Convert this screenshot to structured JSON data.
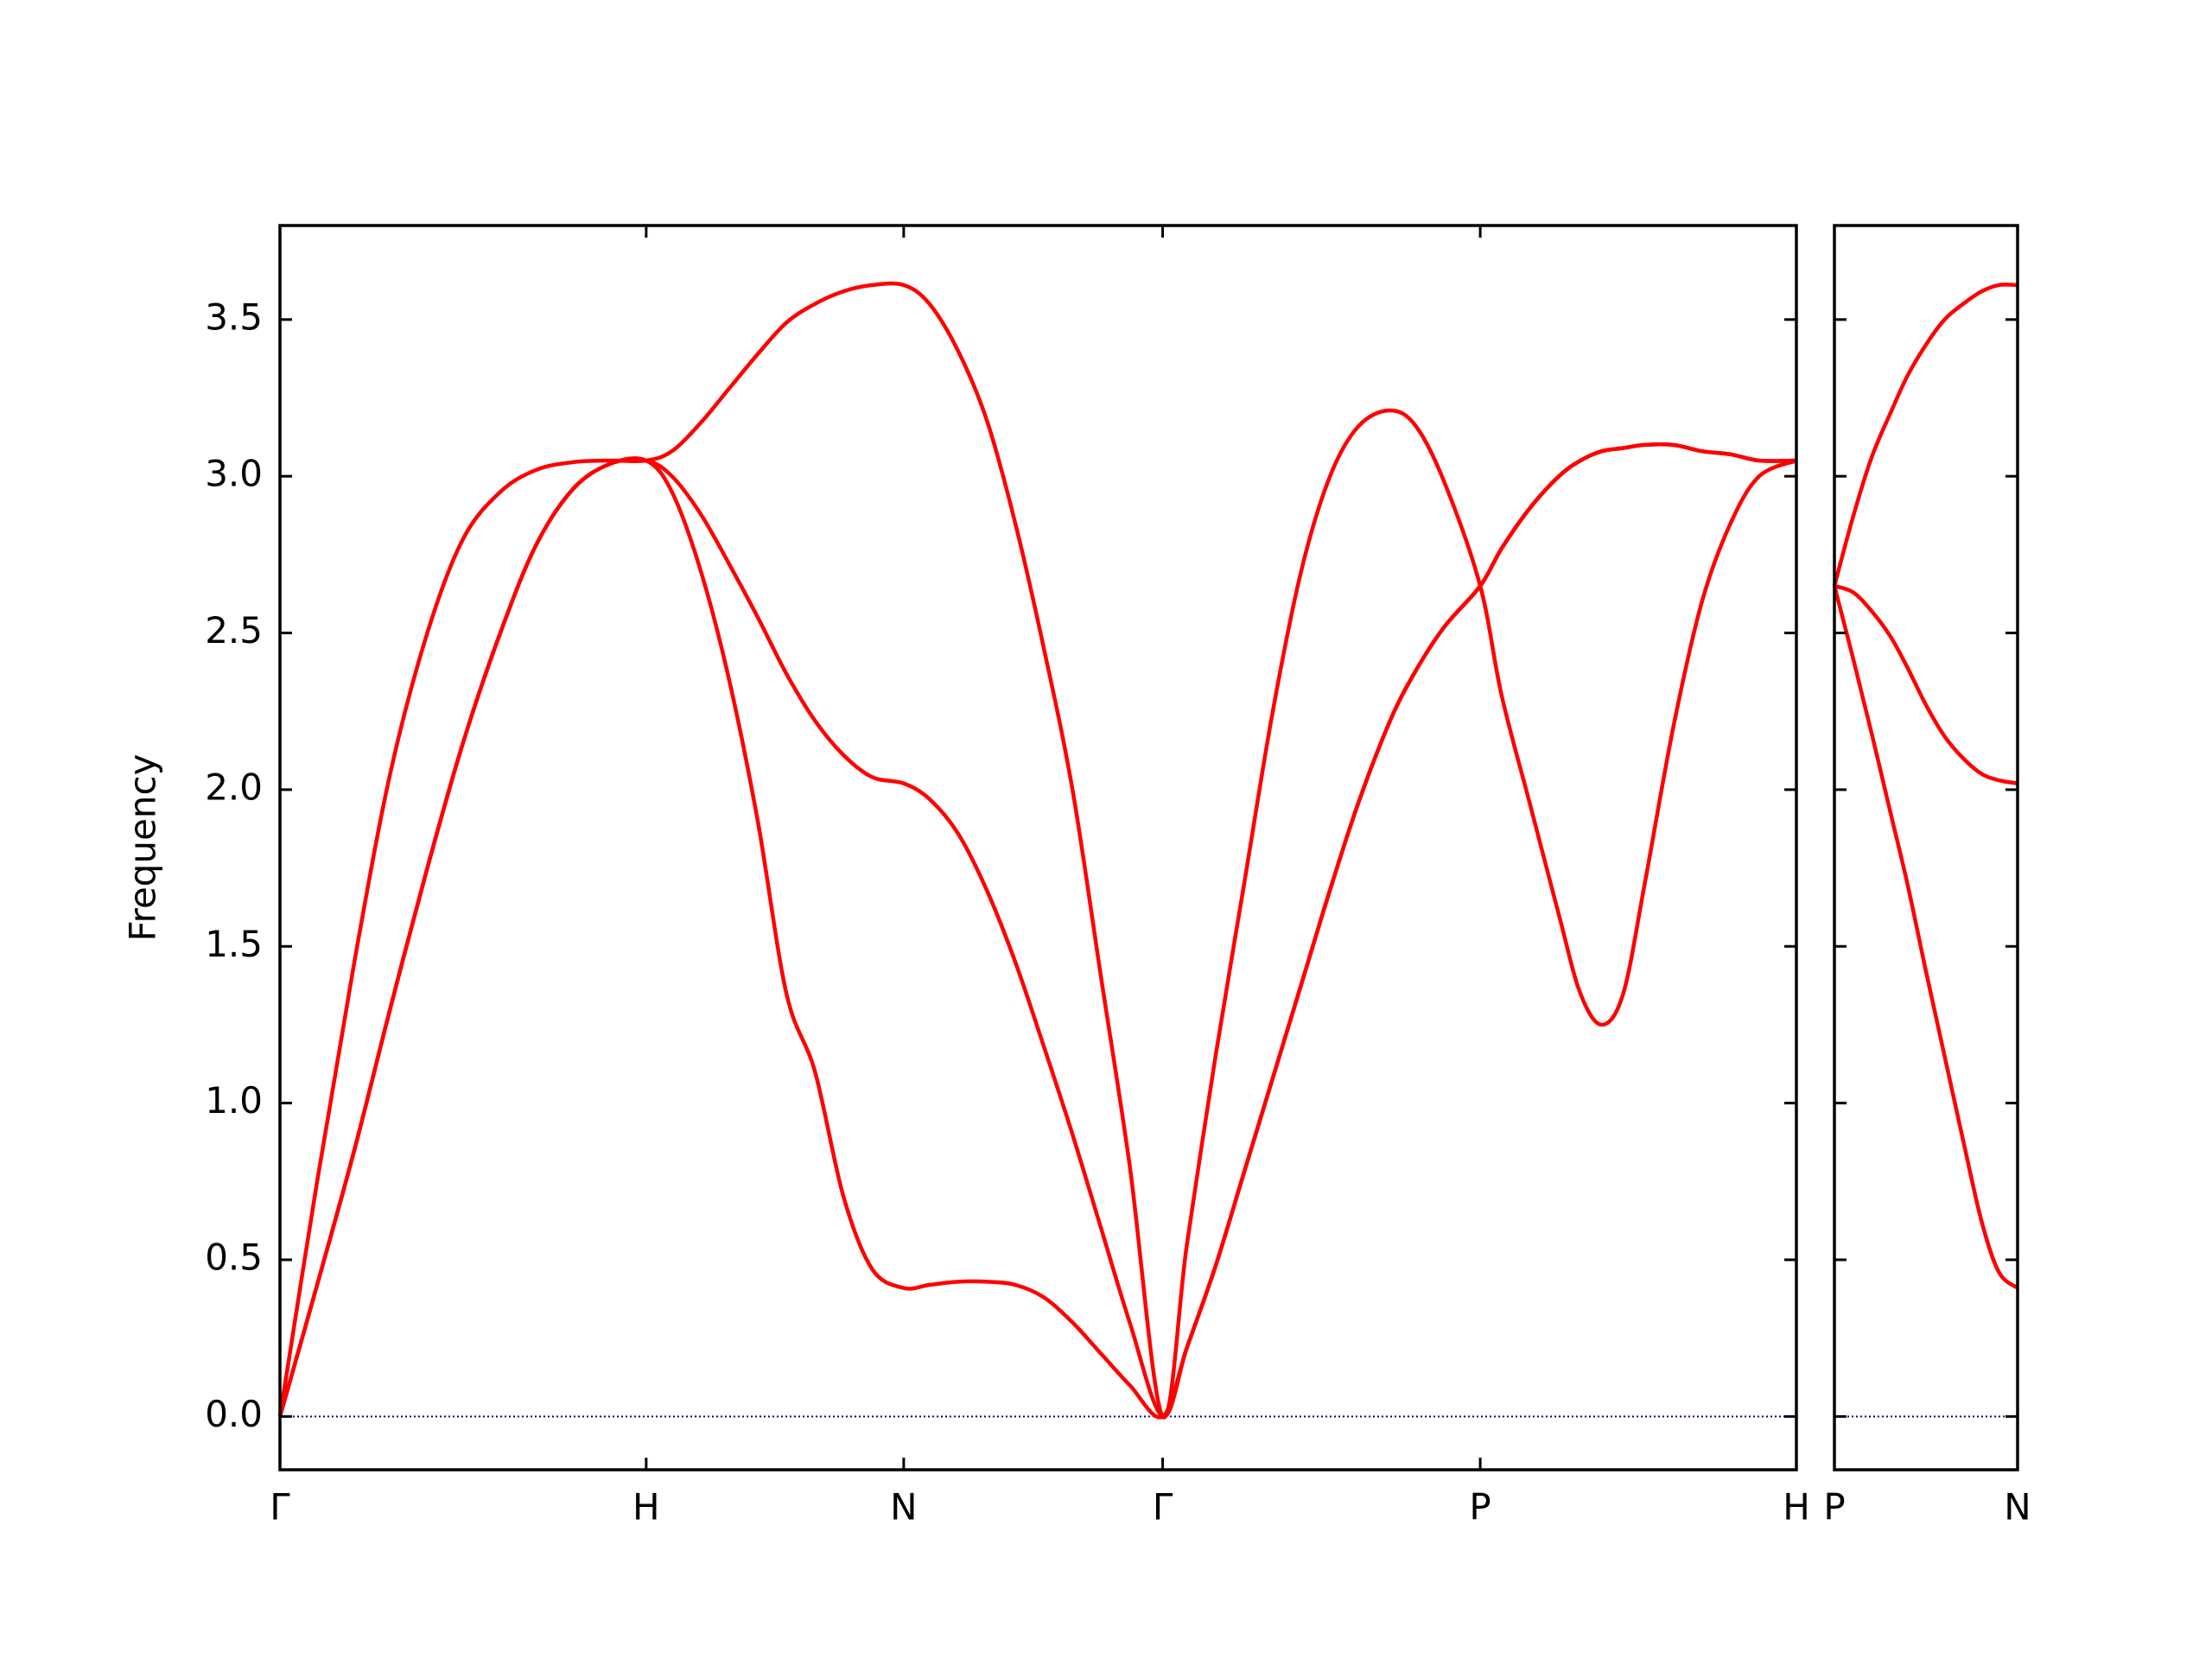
{
  "chart_data": [
    {
      "type": "line",
      "ylabel": "Frequency",
      "x": [
        0,
        0.026,
        0.052,
        0.077,
        0.103,
        0.128,
        0.154,
        0.179,
        0.205,
        0.231,
        0.256,
        0.274,
        0.294,
        0.314,
        0.334,
        0.354,
        0.374,
        0.394,
        0.414,
        0.436,
        0.454,
        0.474,
        0.494,
        0.514,
        0.534,
        0.554,
        0.574,
        0.594,
        0.617,
        0.634,
        0.654,
        0.674,
        0.694,
        0.714,
        0.734,
        0.754,
        0.776,
        0.794,
        0.814,
        0.839,
        0.854,
        0.874,
        0.894,
        0.909,
        0.924,
        0.939,
        0.954,
        0.974,
        0.994,
        1.014,
        1.034,
        1.06
      ],
      "series": [
        {
          "color": "#ff0000",
          "values": [
            0,
            0.75,
            1.45,
            2.05,
            2.5,
            2.8,
            2.95,
            3.02,
            3.045,
            3.05,
            3.05,
            3.08,
            3.17,
            3.28,
            3.39,
            3.49,
            3.55,
            3.59,
            3.61,
            3.61,
            3.55,
            3.4,
            3.18,
            2.85,
            2.45,
            2.0,
            1.4,
            0.8,
            0,
            0.55,
            1.15,
            1.7,
            2.25,
            2.7,
            3.0,
            3.16,
            3.21,
            3.16,
            2.98,
            2.65,
            2.3,
            1.95,
            1.6,
            1.35,
            1.25,
            1.35,
            1.7,
            2.2,
            2.6,
            2.85,
            3.0,
            3.05
          ]
        },
        {
          "color": "#ff0000",
          "values": [
            0,
            0.42,
            0.85,
            1.3,
            1.75,
            2.15,
            2.5,
            2.78,
            2.96,
            3.04,
            3.05,
            3.0,
            2.88,
            2.72,
            2.55,
            2.37,
            2.22,
            2.11,
            2.04,
            2.02,
            1.97,
            1.86,
            1.68,
            1.45,
            1.18,
            0.9,
            0.6,
            0.3,
            0,
            0.22,
            0.48,
            0.78,
            1.08,
            1.38,
            1.68,
            1.96,
            2.22,
            2.38,
            2.52,
            2.65,
            2.77,
            2.9,
            3.0,
            3.05,
            3.08,
            3.09,
            3.1,
            3.1,
            3.08,
            3.07,
            3.05,
            3.05
          ]
        },
        {
          "color": "#ff0000",
          "values": [
            0,
            0.42,
            0.85,
            1.3,
            1.75,
            2.15,
            2.5,
            2.78,
            2.96,
            3.04,
            3.05,
            2.95,
            2.7,
            2.35,
            1.9,
            1.35,
            1.1,
            0.7,
            0.47,
            0.41,
            0.42,
            0.43,
            0.43,
            0.42,
            0.38,
            0.3,
            0.2,
            0.1,
            0,
            0.22,
            0.48,
            0.78,
            1.08,
            1.38,
            1.68,
            1.96,
            2.22,
            2.38,
            2.52,
            2.65,
            2.77,
            2.9,
            3.0,
            3.05,
            3.08,
            3.09,
            3.1,
            3.1,
            3.08,
            3.07,
            3.05,
            3.05
          ]
        }
      ],
      "xlim": [
        0,
        1.06
      ],
      "xticks": [
        {
          "value": 0,
          "label": "Γ"
        },
        {
          "value": 0.256,
          "label": "H"
        },
        {
          "value": 0.436,
          "label": "N"
        },
        {
          "value": 0.617,
          "label": "Γ"
        },
        {
          "value": 0.839,
          "label": "P"
        },
        {
          "value": 1.06,
          "label": "H"
        }
      ],
      "ylim": [
        -0.17,
        3.8
      ],
      "yticks": [
        {
          "value": 0,
          "label": "0.0"
        },
        0.5,
        {
          "value": 1,
          "label": "1.0"
        },
        1.5,
        {
          "value": 2,
          "label": "2.0"
        },
        2.5,
        {
          "value": 3,
          "label": "3.0"
        },
        3.5
      ],
      "hline": {
        "value": 0,
        "color": "#00008b"
      }
    },
    {
      "type": "line",
      "x": [
        0,
        0.013,
        0.026,
        0.039,
        0.051,
        0.064,
        0.077,
        0.09,
        0.103,
        0.115,
        0.128
      ],
      "series": [
        {
          "color": "#ff0000",
          "values": [
            2.65,
            2.87,
            3.06,
            3.2,
            3.32,
            3.42,
            3.5,
            3.55,
            3.59,
            3.61,
            3.61
          ]
        },
        {
          "color": "#ff0000",
          "values": [
            2.65,
            2.63,
            2.57,
            2.49,
            2.39,
            2.27,
            2.17,
            2.1,
            2.05,
            2.03,
            2.02
          ]
        },
        {
          "color": "#ff0000",
          "values": [
            2.65,
            2.42,
            2.18,
            1.93,
            1.7,
            1.42,
            1.15,
            0.88,
            0.62,
            0.46,
            0.41
          ]
        }
      ],
      "xlim": [
        0,
        0.128
      ],
      "xticks": [
        {
          "value": 0,
          "label": "P"
        },
        {
          "value": 0.128,
          "label": "N"
        }
      ],
      "ylim": [
        -0.17,
        3.8
      ],
      "yticks": [
        {
          "value": 0,
          "label": "0.0"
        },
        0.5,
        {
          "value": 1,
          "label": "1.0"
        },
        1.5,
        {
          "value": 2,
          "label": "2.0"
        },
        2.5,
        {
          "value": 3,
          "label": "3.0"
        },
        3.5
      ],
      "hline": {
        "value": 0,
        "color": "#00008b"
      }
    }
  ]
}
